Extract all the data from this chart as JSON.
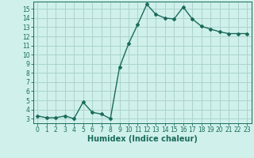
{
  "x": [
    0,
    1,
    2,
    3,
    4,
    5,
    6,
    7,
    8,
    9,
    10,
    11,
    12,
    13,
    14,
    15,
    16,
    17,
    18,
    19,
    20,
    21,
    22,
    23
  ],
  "y": [
    3.3,
    3.1,
    3.1,
    3.3,
    3.0,
    4.8,
    3.7,
    3.5,
    3.0,
    8.6,
    11.2,
    13.3,
    15.5,
    14.4,
    14.0,
    13.9,
    15.2,
    13.9,
    13.1,
    12.8,
    12.5,
    12.3,
    12.3,
    12.3
  ],
  "xlabel": "Humidex (Indice chaleur)",
  "xlim": [
    -0.5,
    23.5
  ],
  "ylim": [
    2.5,
    15.8
  ],
  "yticks": [
    3,
    4,
    5,
    6,
    7,
    8,
    9,
    10,
    11,
    12,
    13,
    14,
    15
  ],
  "xticks": [
    0,
    1,
    2,
    3,
    4,
    5,
    6,
    7,
    8,
    9,
    10,
    11,
    12,
    13,
    14,
    15,
    16,
    17,
    18,
    19,
    20,
    21,
    22,
    23
  ],
  "line_color": "#1a6b5a",
  "marker": "D",
  "marker_size": 2.0,
  "bg_color": "#cff0eb",
  "grid_color": "#aad4cc",
  "tick_label_fontsize": 5.5,
  "xlabel_fontsize": 7.0,
  "line_width": 1.0
}
